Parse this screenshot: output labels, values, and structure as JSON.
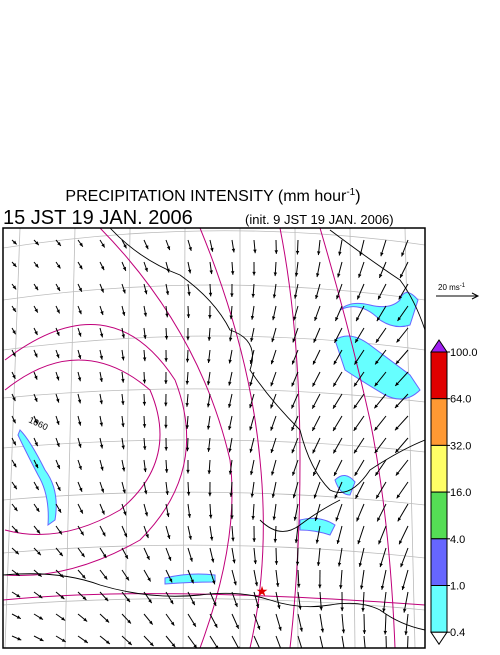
{
  "header": {
    "title": {
      "main": "PRECIPITATION INTENSITY (mm hour",
      "exponent": "-1",
      "close": ")"
    },
    "valid_time": "15 JST 19 JAN. 2006",
    "init_time": "(init. 9 JST 19 JAN. 2006)"
  },
  "wind_scale": {
    "label": "20 ms",
    "exponent": "-1"
  },
  "contour_labels": [
    "1060"
  ],
  "colorbar": {
    "ticks": [
      {
        "value": 100,
        "label": "100.0"
      },
      {
        "value": 64,
        "label": "64.0"
      },
      {
        "value": 32,
        "label": "32.0"
      },
      {
        "value": 16,
        "label": "16.0"
      },
      {
        "value": 4,
        "label": "4.0"
      },
      {
        "value": 1,
        "label": "1.0"
      },
      {
        "value": 0.4,
        "label": "0.4"
      }
    ],
    "over_color": "#a020f0",
    "colors": [
      "#e00000",
      "#ff9933",
      "#ffff66",
      "#55dd55",
      "#6666ff",
      "#66ffff"
    ],
    "under_color": "#ffffff"
  }
}
